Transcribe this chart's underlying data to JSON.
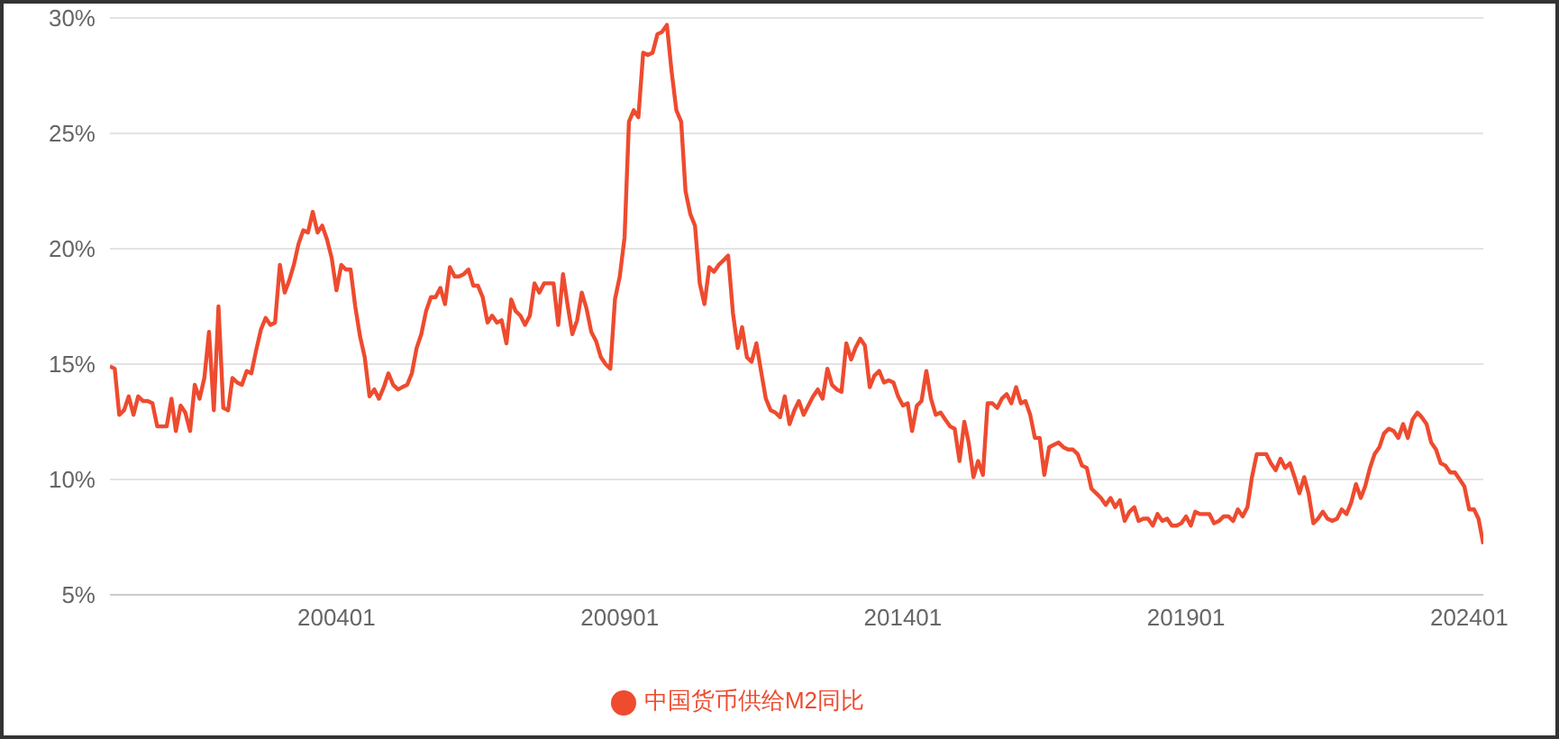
{
  "chart_data": {
    "type": "line",
    "legend": "bottom",
    "grid": "y",
    "marker": "none",
    "line_style": "solid",
    "ylim": [
      5,
      30
    ],
    "yticks": [
      {
        "value": 5,
        "label": "5%"
      },
      {
        "value": 10,
        "label": "10%"
      },
      {
        "value": 15,
        "label": "15%"
      },
      {
        "value": 20,
        "label": "20%"
      },
      {
        "value": 25,
        "label": "25%"
      },
      {
        "value": 30,
        "label": "30%"
      }
    ],
    "xlim": [
      "2000-01",
      "2024-04"
    ],
    "xticks": [
      {
        "value": "2004-01",
        "label": "200401"
      },
      {
        "value": "2009-01",
        "label": "200901"
      },
      {
        "value": "2014-01",
        "label": "201401"
      },
      {
        "value": "2019-01",
        "label": "201901"
      },
      {
        "value": "2024-01",
        "label": "202401"
      }
    ],
    "x": [
      "2000-01",
      "2000-02",
      "2000-03",
      "2000-04",
      "2000-05",
      "2000-06",
      "2000-07",
      "2000-08",
      "2000-09",
      "2000-10",
      "2000-11",
      "2000-12",
      "2001-01",
      "2001-02",
      "2001-03",
      "2001-04",
      "2001-05",
      "2001-06",
      "2001-07",
      "2001-08",
      "2001-09",
      "2001-10",
      "2001-11",
      "2001-12",
      "2002-01",
      "2002-02",
      "2002-03",
      "2002-04",
      "2002-05",
      "2002-06",
      "2002-07",
      "2002-08",
      "2002-09",
      "2002-10",
      "2002-11",
      "2002-12",
      "2003-01",
      "2003-02",
      "2003-03",
      "2003-04",
      "2003-05",
      "2003-06",
      "2003-07",
      "2003-08",
      "2003-09",
      "2003-10",
      "2003-11",
      "2003-12",
      "2004-01",
      "2004-02",
      "2004-03",
      "2004-04",
      "2004-05",
      "2004-06",
      "2004-07",
      "2004-08",
      "2004-09",
      "2004-10",
      "2004-11",
      "2004-12",
      "2005-01",
      "2005-02",
      "2005-03",
      "2005-04",
      "2005-05",
      "2005-06",
      "2005-07",
      "2005-08",
      "2005-09",
      "2005-10",
      "2005-11",
      "2005-12",
      "2006-01",
      "2006-02",
      "2006-03",
      "2006-04",
      "2006-05",
      "2006-06",
      "2006-07",
      "2006-08",
      "2006-09",
      "2006-10",
      "2006-11",
      "2006-12",
      "2007-01",
      "2007-02",
      "2007-03",
      "2007-04",
      "2007-05",
      "2007-06",
      "2007-07",
      "2007-08",
      "2007-09",
      "2007-10",
      "2007-11",
      "2007-12",
      "2008-01",
      "2008-02",
      "2008-03",
      "2008-04",
      "2008-05",
      "2008-06",
      "2008-07",
      "2008-08",
      "2008-09",
      "2008-10",
      "2008-11",
      "2008-12",
      "2009-01",
      "2009-02",
      "2009-03",
      "2009-04",
      "2009-05",
      "2009-06",
      "2009-07",
      "2009-08",
      "2009-09",
      "2009-10",
      "2009-11",
      "2009-12",
      "2010-01",
      "2010-02",
      "2010-03",
      "2010-04",
      "2010-05",
      "2010-06",
      "2010-07",
      "2010-08",
      "2010-09",
      "2010-10",
      "2010-11",
      "2010-12",
      "2011-01",
      "2011-02",
      "2011-03",
      "2011-04",
      "2011-05",
      "2011-06",
      "2011-07",
      "2011-08",
      "2011-09",
      "2011-10",
      "2011-11",
      "2011-12",
      "2012-01",
      "2012-02",
      "2012-03",
      "2012-04",
      "2012-05",
      "2012-06",
      "2012-07",
      "2012-08",
      "2012-09",
      "2012-10",
      "2012-11",
      "2012-12",
      "2013-01",
      "2013-02",
      "2013-03",
      "2013-04",
      "2013-05",
      "2013-06",
      "2013-07",
      "2013-08",
      "2013-09",
      "2013-10",
      "2013-11",
      "2013-12",
      "2014-01",
      "2014-02",
      "2014-03",
      "2014-04",
      "2014-05",
      "2014-06",
      "2014-07",
      "2014-08",
      "2014-09",
      "2014-10",
      "2014-11",
      "2014-12",
      "2015-01",
      "2015-02",
      "2015-03",
      "2015-04",
      "2015-05",
      "2015-06",
      "2015-07",
      "2015-08",
      "2015-09",
      "2015-10",
      "2015-11",
      "2015-12",
      "2016-01",
      "2016-02",
      "2016-03",
      "2016-04",
      "2016-05",
      "2016-06",
      "2016-07",
      "2016-08",
      "2016-09",
      "2016-10",
      "2016-11",
      "2016-12",
      "2017-01",
      "2017-02",
      "2017-03",
      "2017-04",
      "2017-05",
      "2017-06",
      "2017-07",
      "2017-08",
      "2017-09",
      "2017-10",
      "2017-11",
      "2017-12",
      "2018-01",
      "2018-02",
      "2018-03",
      "2018-04",
      "2018-05",
      "2018-06",
      "2018-07",
      "2018-08",
      "2018-09",
      "2018-10",
      "2018-11",
      "2018-12",
      "2019-01",
      "2019-02",
      "2019-03",
      "2019-04",
      "2019-05",
      "2019-06",
      "2019-07",
      "2019-08",
      "2019-09",
      "2019-10",
      "2019-11",
      "2019-12",
      "2020-01",
      "2020-02",
      "2020-03",
      "2020-04",
      "2020-05",
      "2020-06",
      "2020-07",
      "2020-08",
      "2020-09",
      "2020-10",
      "2020-11",
      "2020-12",
      "2021-01",
      "2021-02",
      "2021-03",
      "2021-04",
      "2021-05",
      "2021-06",
      "2021-07",
      "2021-08",
      "2021-09",
      "2021-10",
      "2021-11",
      "2021-12",
      "2022-01",
      "2022-02",
      "2022-03",
      "2022-04",
      "2022-05",
      "2022-06",
      "2022-07",
      "2022-08",
      "2022-09",
      "2022-10",
      "2022-11",
      "2022-12",
      "2023-01",
      "2023-02",
      "2023-03",
      "2023-04",
      "2023-05",
      "2023-06",
      "2023-07",
      "2023-08",
      "2023-09",
      "2023-10",
      "2023-11",
      "2023-12",
      "2024-01",
      "2024-02",
      "2024-03",
      "2024-04"
    ],
    "series": [
      {
        "name": "中国货币供给M2同比",
        "color": "#ee4b2f",
        "values": [
          14.9,
          14.8,
          12.8,
          13.0,
          13.6,
          12.8,
          13.6,
          13.4,
          13.4,
          13.3,
          12.3,
          12.3,
          12.3,
          13.5,
          12.1,
          13.2,
          12.9,
          12.1,
          14.1,
          13.5,
          14.4,
          16.4,
          13.0,
          17.5,
          13.1,
          13.0,
          14.4,
          14.2,
          14.1,
          14.7,
          14.6,
          15.6,
          16.5,
          17.0,
          16.7,
          16.8,
          19.3,
          18.1,
          18.6,
          19.3,
          20.2,
          20.8,
          20.7,
          21.6,
          20.7,
          21.0,
          20.4,
          19.6,
          18.2,
          19.3,
          19.1,
          19.1,
          17.5,
          16.2,
          15.3,
          13.6,
          13.9,
          13.5,
          14.0,
          14.6,
          14.1,
          13.9,
          14.0,
          14.1,
          14.6,
          15.7,
          16.3,
          17.3,
          17.9,
          17.9,
          18.3,
          17.6,
          19.2,
          18.8,
          18.8,
          18.9,
          19.1,
          18.4,
          18.4,
          17.9,
          16.8,
          17.1,
          16.8,
          16.9,
          15.9,
          17.8,
          17.3,
          17.1,
          16.7,
          17.1,
          18.5,
          18.1,
          18.5,
          18.5,
          18.5,
          16.7,
          18.9,
          17.5,
          16.3,
          16.9,
          18.1,
          17.4,
          16.4,
          16.0,
          15.3,
          15.0,
          14.8,
          17.8,
          18.8,
          20.5,
          25.5,
          26.0,
          25.7,
          28.5,
          28.4,
          28.5,
          29.3,
          29.4,
          29.7,
          27.7,
          26.0,
          25.5,
          22.5,
          21.5,
          21.0,
          18.5,
          17.6,
          19.2,
          19.0,
          19.3,
          19.5,
          19.7,
          17.2,
          15.7,
          16.6,
          15.3,
          15.1,
          15.9,
          14.7,
          13.5,
          13.0,
          12.9,
          12.7,
          13.6,
          12.4,
          13.0,
          13.4,
          12.8,
          13.2,
          13.6,
          13.9,
          13.5,
          14.8,
          14.1,
          13.9,
          13.8,
          15.9,
          15.2,
          15.7,
          16.1,
          15.8,
          14.0,
          14.5,
          14.7,
          14.2,
          14.3,
          14.2,
          13.6,
          13.2,
          13.3,
          12.1,
          13.2,
          13.4,
          14.7,
          13.5,
          12.8,
          12.9,
          12.6,
          12.3,
          12.2,
          10.8,
          12.5,
          11.6,
          10.1,
          10.8,
          10.2,
          13.3,
          13.3,
          13.1,
          13.5,
          13.7,
          13.3,
          14.0,
          13.3,
          13.4,
          12.8,
          11.8,
          11.8,
          10.2,
          11.4,
          11.5,
          11.6,
          11.4,
          11.3,
          11.3,
          11.1,
          10.6,
          10.5,
          9.6,
          9.4,
          9.2,
          8.9,
          9.2,
          8.8,
          9.1,
          8.2,
          8.6,
          8.8,
          8.2,
          8.3,
          8.3,
          8.0,
          8.5,
          8.2,
          8.3,
          8.0,
          8.0,
          8.1,
          8.4,
          8.0,
          8.6,
          8.5,
          8.5,
          8.5,
          8.1,
          8.2,
          8.4,
          8.4,
          8.2,
          8.7,
          8.4,
          8.8,
          10.1,
          11.1,
          11.1,
          11.1,
          10.7,
          10.4,
          10.9,
          10.5,
          10.7,
          10.1,
          9.4,
          10.1,
          9.4,
          8.1,
          8.3,
          8.6,
          8.3,
          8.2,
          8.3,
          8.7,
          8.5,
          9.0,
          9.8,
          9.2,
          9.7,
          10.5,
          11.1,
          11.4,
          12.0,
          12.2,
          12.1,
          11.8,
          12.4,
          11.8,
          12.6,
          12.9,
          12.7,
          12.4,
          11.6,
          11.3,
          10.7,
          10.6,
          10.3,
          10.3,
          10.0,
          9.7,
          8.7,
          8.7,
          8.3,
          7.2
        ]
      }
    ]
  }
}
